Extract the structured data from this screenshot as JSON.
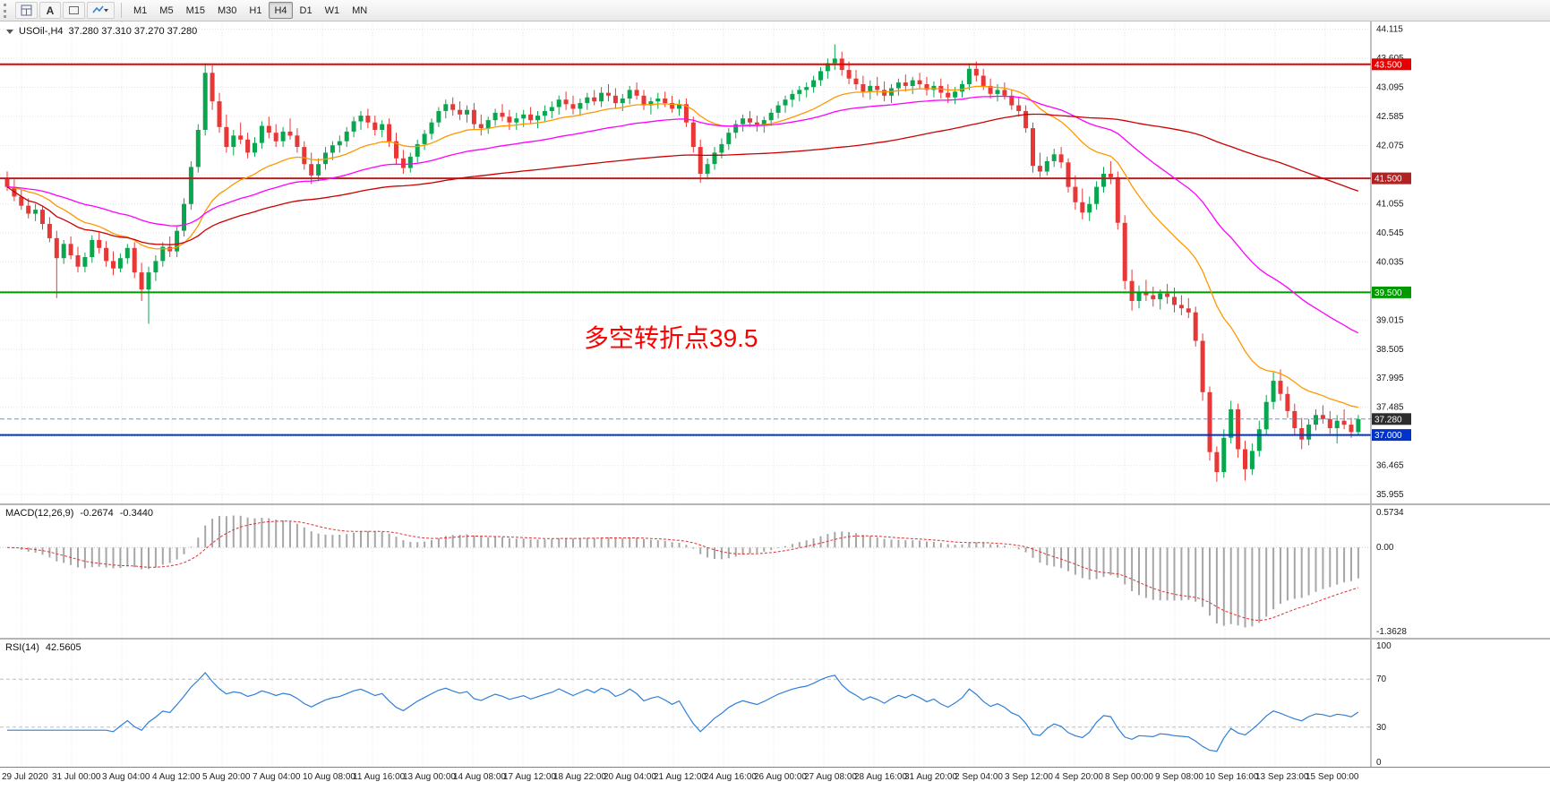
{
  "toolbar": {
    "text_tool_label": "A",
    "icon_buttons": [
      "chart-grid-icon",
      "text-label-icon",
      "shape-box-icon",
      "indicators-dropdown-icon"
    ],
    "timeframes": [
      "M1",
      "M5",
      "M15",
      "M30",
      "H1",
      "H4",
      "D1",
      "W1",
      "MN"
    ],
    "active_timeframe": "H4"
  },
  "chart": {
    "header": {
      "symbol": "USOil-,H4",
      "ohlc": "37.280 37.310 37.270 37.280"
    },
    "annotation": {
      "text": "多空转折点39.5",
      "color": "#fe0000"
    },
    "colors": {
      "up": "#0aa64f",
      "down": "#e83737",
      "ma_fast": "#ff9800",
      "ma_mid": "#ff00ff",
      "ma_slow": "#cc0000",
      "grid": "#e3e3e3",
      "bid_line": "#5b9bd5",
      "bid_tag": "#2d2d2d"
    },
    "levels": [
      {
        "value": 43.5,
        "label": "43.500",
        "color": "#e60000"
      },
      {
        "value": 41.5,
        "label": "41.500",
        "color": "#b22222"
      },
      {
        "value": 39.5,
        "label": "39.500",
        "color": "#009900"
      },
      {
        "value": 37.0,
        "label": "37.000",
        "color": "#0033cc"
      }
    ],
    "bid": {
      "value": 37.28,
      "label": "37.280"
    },
    "price_axis": [
      44.115,
      43.605,
      43.095,
      42.585,
      42.075,
      41.055,
      40.545,
      40.035,
      39.015,
      38.505,
      37.995,
      37.485,
      36.465,
      35.955
    ],
    "time_axis": [
      "29 Jul 2020",
      "31 Jul 00:00",
      "3 Aug 04:00",
      "4 Aug 12:00",
      "5 Aug 20:00",
      "7 Aug 04:00",
      "10 Aug 08:00",
      "11 Aug 16:00",
      "13 Aug 00:00",
      "14 Aug 08:00",
      "17 Aug 12:00",
      "18 Aug 22:00",
      "20 Aug 04:00",
      "21 Aug 12:00",
      "24 Aug 16:00",
      "26 Aug 00:00",
      "27 Aug 08:00",
      "28 Aug 16:00",
      "31 Aug 20:00",
      "2 Sep 04:00",
      "3 Sep 12:00",
      "4 Sep 20:00",
      "8 Sep 00:00",
      "9 Sep 08:00",
      "10 Sep 16:00",
      "13 Sep 23:00",
      "15 Sep 00:00"
    ]
  },
  "macd": {
    "label": "MACD(12,26,9)",
    "value_main": "-0.2674",
    "value_signal": "-0.3440",
    "axis_top": "0.5734",
    "axis_zero": "0.00",
    "axis_bottom": "-1.3628"
  },
  "rsi": {
    "label": "RSI(14)",
    "value": "42.5605",
    "axis": [
      "100",
      "70",
      "30",
      "0"
    ],
    "levels": [
      70,
      30
    ]
  },
  "chart_data": {
    "type": "candlestick",
    "symbol": "USOil-",
    "timeframe": "H4",
    "title": "USOil-,H4 37.280 37.310 37.270 37.280",
    "ylim": [
      35.8,
      44.25
    ],
    "grid": true,
    "overlays": [
      {
        "name": "ma-fast",
        "type": "ema",
        "period": 20,
        "color": "#ff9800"
      },
      {
        "name": "ma-mid",
        "type": "ema",
        "period": 50,
        "color": "#ff00ff"
      },
      {
        "name": "ma-slow",
        "type": "sma",
        "period": 120,
        "color": "#cc0000"
      }
    ],
    "sub_indicators": [
      {
        "name": "MACD",
        "params": [
          12,
          26,
          9
        ],
        "current": [
          -0.2674,
          -0.344
        ],
        "axis": [
          0.5734,
          0.0,
          -1.3628
        ]
      },
      {
        "name": "RSI",
        "params": [
          14
        ],
        "current": 42.5605,
        "axis": [
          100,
          70,
          30,
          0
        ],
        "levels": [
          70,
          30
        ]
      }
    ],
    "ohlc": [
      [
        41.5,
        41.62,
        41.28,
        41.35
      ],
      [
        41.35,
        41.48,
        41.1,
        41.18
      ],
      [
        41.18,
        41.3,
        40.95,
        41.02
      ],
      [
        41.02,
        41.15,
        40.8,
        40.88
      ],
      [
        40.88,
        41.05,
        40.75,
        40.95
      ],
      [
        40.95,
        41.0,
        40.6,
        40.7
      ],
      [
        40.7,
        40.82,
        40.38,
        40.45
      ],
      [
        40.45,
        40.58,
        39.4,
        40.1
      ],
      [
        40.1,
        40.42,
        40.0,
        40.35
      ],
      [
        40.35,
        40.48,
        40.08,
        40.15
      ],
      [
        40.15,
        40.3,
        39.85,
        39.95
      ],
      [
        39.95,
        40.2,
        39.85,
        40.12
      ],
      [
        40.12,
        40.5,
        40.02,
        40.42
      ],
      [
        40.42,
        40.55,
        40.18,
        40.28
      ],
      [
        40.28,
        40.4,
        39.95,
        40.05
      ],
      [
        40.05,
        40.22,
        39.8,
        39.92
      ],
      [
        39.92,
        40.18,
        39.85,
        40.1
      ],
      [
        40.1,
        40.35,
        40.0,
        40.28
      ],
      [
        40.28,
        40.38,
        39.75,
        39.85
      ],
      [
        39.85,
        40.02,
        39.35,
        39.55
      ],
      [
        39.55,
        39.95,
        38.95,
        39.85
      ],
      [
        39.85,
        40.15,
        39.7,
        40.05
      ],
      [
        40.05,
        40.38,
        39.95,
        40.3
      ],
      [
        40.3,
        40.48,
        40.12,
        40.22
      ],
      [
        40.22,
        40.65,
        40.12,
        40.58
      ],
      [
        40.58,
        41.15,
        40.48,
        41.05
      ],
      [
        41.05,
        41.8,
        40.95,
        41.7
      ],
      [
        41.7,
        42.45,
        41.6,
        42.35
      ],
      [
        42.35,
        43.52,
        42.25,
        43.35
      ],
      [
        43.35,
        43.48,
        42.7,
        42.85
      ],
      [
        42.85,
        43.0,
        42.3,
        42.4
      ],
      [
        42.4,
        42.62,
        41.95,
        42.05
      ],
      [
        42.05,
        42.35,
        41.9,
        42.25
      ],
      [
        42.25,
        42.48,
        42.1,
        42.18
      ],
      [
        42.18,
        42.3,
        41.85,
        41.95
      ],
      [
        41.95,
        42.22,
        41.88,
        42.12
      ],
      [
        42.12,
        42.5,
        42.02,
        42.42
      ],
      [
        42.42,
        42.58,
        42.2,
        42.3
      ],
      [
        42.3,
        42.45,
        42.05,
        42.15
      ],
      [
        42.15,
        42.4,
        42.05,
        42.32
      ],
      [
        42.32,
        42.55,
        42.18,
        42.25
      ],
      [
        42.25,
        42.38,
        41.95,
        42.05
      ],
      [
        42.05,
        42.15,
        41.65,
        41.75
      ],
      [
        41.75,
        41.95,
        41.4,
        41.55
      ],
      [
        41.55,
        41.85,
        41.45,
        41.75
      ],
      [
        41.75,
        42.05,
        41.65,
        41.95
      ],
      [
        41.95,
        42.15,
        41.82,
        42.08
      ],
      [
        42.08,
        42.25,
        41.95,
        42.15
      ],
      [
        42.15,
        42.4,
        42.05,
        42.32
      ],
      [
        42.32,
        42.58,
        42.22,
        42.5
      ],
      [
        42.5,
        42.68,
        42.35,
        42.6
      ],
      [
        42.6,
        42.72,
        42.38,
        42.48
      ],
      [
        42.48,
        42.6,
        42.25,
        42.35
      ],
      [
        42.35,
        42.52,
        42.22,
        42.45
      ],
      [
        42.45,
        42.55,
        42.05,
        42.15
      ],
      [
        42.15,
        42.3,
        41.75,
        41.85
      ],
      [
        41.85,
        42.0,
        41.58,
        41.68
      ],
      [
        41.68,
        41.95,
        41.6,
        41.88
      ],
      [
        41.88,
        42.18,
        41.78,
        42.1
      ],
      [
        42.1,
        42.35,
        42.0,
        42.28
      ],
      [
        42.28,
        42.55,
        42.18,
        42.48
      ],
      [
        42.48,
        42.75,
        42.4,
        42.68
      ],
      [
        42.68,
        42.88,
        42.55,
        42.8
      ],
      [
        42.8,
        42.92,
        42.6,
        42.7
      ],
      [
        42.7,
        42.85,
        42.52,
        42.62
      ],
      [
        42.62,
        42.78,
        42.48,
        42.7
      ],
      [
        42.7,
        42.82,
        42.35,
        42.45
      ],
      [
        42.45,
        42.62,
        42.25,
        42.38
      ],
      [
        42.38,
        42.58,
        42.28,
        42.52
      ],
      [
        42.52,
        42.72,
        42.42,
        42.65
      ],
      [
        42.65,
        42.8,
        42.5,
        42.58
      ],
      [
        42.58,
        42.7,
        42.35,
        42.48
      ],
      [
        42.48,
        42.65,
        42.35,
        42.55
      ],
      [
        42.55,
        42.7,
        42.4,
        42.62
      ],
      [
        42.62,
        42.75,
        42.45,
        42.52
      ],
      [
        42.52,
        42.68,
        42.38,
        42.6
      ],
      [
        42.6,
        42.78,
        42.48,
        42.68
      ],
      [
        42.68,
        42.85,
        42.55,
        42.75
      ],
      [
        42.75,
        42.95,
        42.62,
        42.88
      ],
      [
        42.88,
        43.02,
        42.7,
        42.8
      ],
      [
        42.8,
        42.95,
        42.62,
        42.72
      ],
      [
        42.72,
        42.9,
        42.6,
        42.82
      ],
      [
        42.82,
        43.0,
        42.7,
        42.92
      ],
      [
        42.92,
        43.05,
        42.78,
        42.85
      ],
      [
        42.85,
        43.1,
        42.75,
        43.0
      ],
      [
        43.0,
        43.15,
        42.85,
        42.95
      ],
      [
        42.95,
        43.08,
        42.72,
        42.82
      ],
      [
        42.82,
        42.98,
        42.68,
        42.9
      ],
      [
        42.9,
        43.12,
        42.8,
        43.05
      ],
      [
        43.05,
        43.18,
        42.88,
        42.95
      ],
      [
        42.95,
        43.05,
        42.7,
        42.78
      ],
      [
        42.78,
        42.92,
        42.62,
        42.85
      ],
      [
        42.85,
        43.0,
        42.72,
        42.9
      ],
      [
        42.9,
        43.02,
        42.75,
        42.82
      ],
      [
        42.82,
        42.95,
        42.65,
        42.72
      ],
      [
        42.72,
        42.88,
        42.6,
        42.8
      ],
      [
        42.8,
        42.9,
        42.4,
        42.48
      ],
      [
        42.48,
        42.58,
        41.95,
        42.05
      ],
      [
        42.05,
        42.18,
        41.42,
        41.58
      ],
      [
        41.58,
        41.85,
        41.48,
        41.75
      ],
      [
        41.75,
        42.05,
        41.65,
        41.95
      ],
      [
        41.95,
        42.2,
        41.85,
        42.1
      ],
      [
        42.1,
        42.38,
        42.0,
        42.3
      ],
      [
        42.3,
        42.52,
        42.2,
        42.45
      ],
      [
        42.45,
        42.62,
        42.32,
        42.55
      ],
      [
        42.55,
        42.68,
        42.4,
        42.48
      ],
      [
        42.48,
        42.6,
        42.32,
        42.42
      ],
      [
        42.42,
        42.58,
        42.3,
        42.52
      ],
      [
        42.52,
        42.72,
        42.42,
        42.65
      ],
      [
        42.65,
        42.85,
        42.55,
        42.78
      ],
      [
        42.78,
        42.95,
        42.65,
        42.88
      ],
      [
        42.88,
        43.05,
        42.75,
        42.98
      ],
      [
        42.98,
        43.12,
        42.85,
        43.05
      ],
      [
        43.05,
        43.18,
        42.92,
        43.1
      ],
      [
        43.1,
        43.3,
        43.0,
        43.22
      ],
      [
        43.22,
        43.45,
        43.12,
        43.38
      ],
      [
        43.38,
        43.6,
        43.25,
        43.52
      ],
      [
        43.52,
        43.85,
        43.4,
        43.6
      ],
      [
        43.6,
        43.72,
        43.3,
        43.4
      ],
      [
        43.4,
        43.55,
        43.15,
        43.25
      ],
      [
        43.25,
        43.4,
        43.05,
        43.15
      ],
      [
        43.15,
        43.3,
        42.92,
        43.02
      ],
      [
        43.02,
        43.22,
        42.88,
        43.12
      ],
      [
        43.12,
        43.28,
        42.95,
        43.05
      ],
      [
        43.05,
        43.2,
        42.85,
        42.95
      ],
      [
        42.95,
        43.15,
        42.82,
        43.08
      ],
      [
        43.08,
        43.25,
        42.95,
        43.18
      ],
      [
        43.18,
        43.32,
        43.02,
        43.12
      ],
      [
        43.12,
        43.28,
        42.98,
        43.22
      ],
      [
        43.22,
        43.35,
        43.08,
        43.15
      ],
      [
        43.15,
        43.28,
        42.95,
        43.05
      ],
      [
        43.05,
        43.2,
        42.92,
        43.12
      ],
      [
        43.12,
        43.25,
        42.9,
        43.0
      ],
      [
        43.0,
        43.15,
        42.82,
        42.92
      ],
      [
        42.92,
        43.1,
        42.8,
        43.02
      ],
      [
        43.02,
        43.22,
        42.92,
        43.15
      ],
      [
        43.15,
        43.52,
        43.05,
        43.42
      ],
      [
        43.42,
        43.55,
        43.2,
        43.3
      ],
      [
        43.3,
        43.42,
        43.05,
        43.12
      ],
      [
        43.12,
        43.25,
        42.9,
        42.98
      ],
      [
        42.98,
        43.15,
        42.85,
        43.05
      ],
      [
        43.05,
        43.18,
        42.88,
        42.95
      ],
      [
        42.95,
        43.05,
        42.7,
        42.78
      ],
      [
        42.78,
        42.92,
        42.58,
        42.68
      ],
      [
        42.68,
        42.78,
        42.3,
        42.38
      ],
      [
        42.38,
        42.48,
        41.6,
        41.72
      ],
      [
        41.72,
        41.95,
        41.52,
        41.62
      ],
      [
        41.62,
        41.88,
        41.55,
        41.8
      ],
      [
        41.8,
        42.02,
        41.7,
        41.92
      ],
      [
        41.92,
        42.05,
        41.68,
        41.78
      ],
      [
        41.78,
        41.85,
        41.25,
        41.35
      ],
      [
        41.35,
        41.55,
        40.95,
        41.08
      ],
      [
        41.08,
        41.32,
        40.78,
        40.9
      ],
      [
        40.9,
        41.18,
        40.75,
        41.05
      ],
      [
        41.05,
        41.45,
        40.95,
        41.35
      ],
      [
        41.35,
        41.7,
        41.25,
        41.58
      ],
      [
        41.58,
        41.8,
        41.4,
        41.52
      ],
      [
        41.52,
        41.62,
        40.6,
        40.72
      ],
      [
        40.72,
        40.85,
        39.55,
        39.7
      ],
      [
        39.7,
        39.9,
        39.18,
        39.35
      ],
      [
        39.35,
        39.62,
        39.22,
        39.5
      ],
      [
        39.5,
        39.72,
        39.35,
        39.45
      ],
      [
        39.45,
        39.6,
        39.25,
        39.38
      ],
      [
        39.38,
        39.55,
        39.2,
        39.48
      ],
      [
        39.48,
        39.65,
        39.3,
        39.42
      ],
      [
        39.42,
        39.58,
        39.15,
        39.28
      ],
      [
        39.28,
        39.45,
        39.1,
        39.22
      ],
      [
        39.22,
        39.4,
        39.05,
        39.15
      ],
      [
        39.15,
        39.25,
        38.55,
        38.65
      ],
      [
        38.65,
        38.78,
        37.6,
        37.75
      ],
      [
        37.75,
        37.85,
        36.55,
        36.7
      ],
      [
        36.7,
        36.8,
        36.18,
        36.35
      ],
      [
        36.35,
        37.1,
        36.25,
        36.95
      ],
      [
        36.95,
        37.6,
        36.85,
        37.45
      ],
      [
        37.45,
        37.55,
        36.6,
        36.75
      ],
      [
        36.75,
        36.9,
        36.2,
        36.4
      ],
      [
        36.4,
        36.85,
        36.3,
        36.72
      ],
      [
        36.72,
        37.25,
        36.62,
        37.1
      ],
      [
        37.1,
        37.7,
        37.0,
        37.58
      ],
      [
        37.58,
        38.1,
        37.45,
        37.95
      ],
      [
        37.95,
        38.15,
        37.6,
        37.72
      ],
      [
        37.72,
        37.85,
        37.3,
        37.42
      ],
      [
        37.42,
        37.55,
        37.0,
        37.12
      ],
      [
        37.12,
        37.3,
        36.75,
        36.92
      ],
      [
        36.92,
        37.28,
        36.82,
        37.18
      ],
      [
        37.18,
        37.45,
        37.08,
        37.35
      ],
      [
        37.35,
        37.52,
        37.2,
        37.28
      ],
      [
        37.28,
        37.42,
        37.02,
        37.12
      ],
      [
        37.12,
        37.35,
        36.85,
        37.25
      ],
      [
        37.25,
        37.45,
        37.1,
        37.18
      ],
      [
        37.18,
        37.3,
        36.95,
        37.05
      ],
      [
        37.05,
        37.35,
        37.0,
        37.28
      ]
    ]
  }
}
